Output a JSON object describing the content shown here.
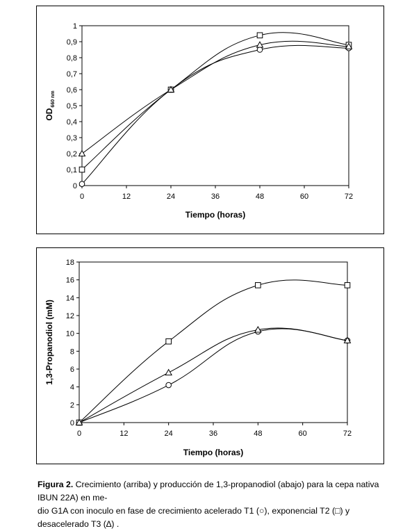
{
  "chart_data": [
    {
      "type": "line",
      "xlabel": "Tiempo (horas)",
      "ylabel": "OD",
      "ylabel_sub": "660 nm",
      "xlim": [
        0,
        72
      ],
      "ylim": [
        0,
        1
      ],
      "xticks": [
        0,
        12,
        24,
        36,
        48,
        60,
        72
      ],
      "xtick_labels": [
        "0",
        "12",
        "24",
        "36",
        "48",
        "60",
        "72"
      ],
      "yticks": [
        0,
        0.1,
        0.2,
        0.3,
        0.4,
        0.5,
        0.6,
        0.7,
        0.8,
        0.9,
        1
      ],
      "ytick_labels": [
        "0",
        "0,1",
        "0,2",
        "0,3",
        "0,4",
        "0,5",
        "0,6",
        "0,7",
        "0,8",
        "0,9",
        "1"
      ],
      "x": [
        0,
        24,
        48,
        72
      ],
      "series": [
        {
          "marker": "circle",
          "values": [
            0.01,
            0.6,
            0.85,
            0.86
          ]
        },
        {
          "marker": "square",
          "values": [
            0.1,
            0.6,
            0.94,
            0.88
          ]
        },
        {
          "marker": "triangle",
          "values": [
            0.2,
            0.6,
            0.88,
            0.87
          ]
        }
      ],
      "grid": false
    },
    {
      "type": "line",
      "xlabel": "Tiempo (horas)",
      "ylabel": "1,3-Propanodiol (mM)",
      "xlim": [
        0,
        72
      ],
      "ylim": [
        0,
        18
      ],
      "xticks": [
        0,
        12,
        24,
        36,
        48,
        60,
        72
      ],
      "xtick_labels": [
        "0",
        "12",
        "24",
        "36",
        "48",
        "60",
        "72"
      ],
      "yticks": [
        0,
        2,
        4,
        6,
        8,
        10,
        12,
        14,
        16,
        18
      ],
      "ytick_labels": [
        "0",
        "2",
        "4",
        "6",
        "8",
        "10",
        "12",
        "14",
        "16",
        "18"
      ],
      "x": [
        0,
        24,
        48,
        72
      ],
      "series": [
        {
          "marker": "circle",
          "values": [
            0,
            4.2,
            10.2,
            9.2
          ]
        },
        {
          "marker": "square",
          "values": [
            0,
            9.1,
            15.4,
            15.4
          ]
        },
        {
          "marker": "triangle",
          "values": [
            0,
            5.6,
            10.4,
            9.2
          ]
        }
      ],
      "grid": false
    }
  ],
  "caption": {
    "label": "Figura 2.",
    "line1": " Crecimiento (arriba) y producción de 1,3-propanodiol (abajo) para la cepa nativa IBUN 22A) en me-",
    "line2": "dio G1A con inoculo en fase de crecimiento acelerado T1 (○), exponencial  T2 (□) y desacelerado T3 (∆) ."
  }
}
